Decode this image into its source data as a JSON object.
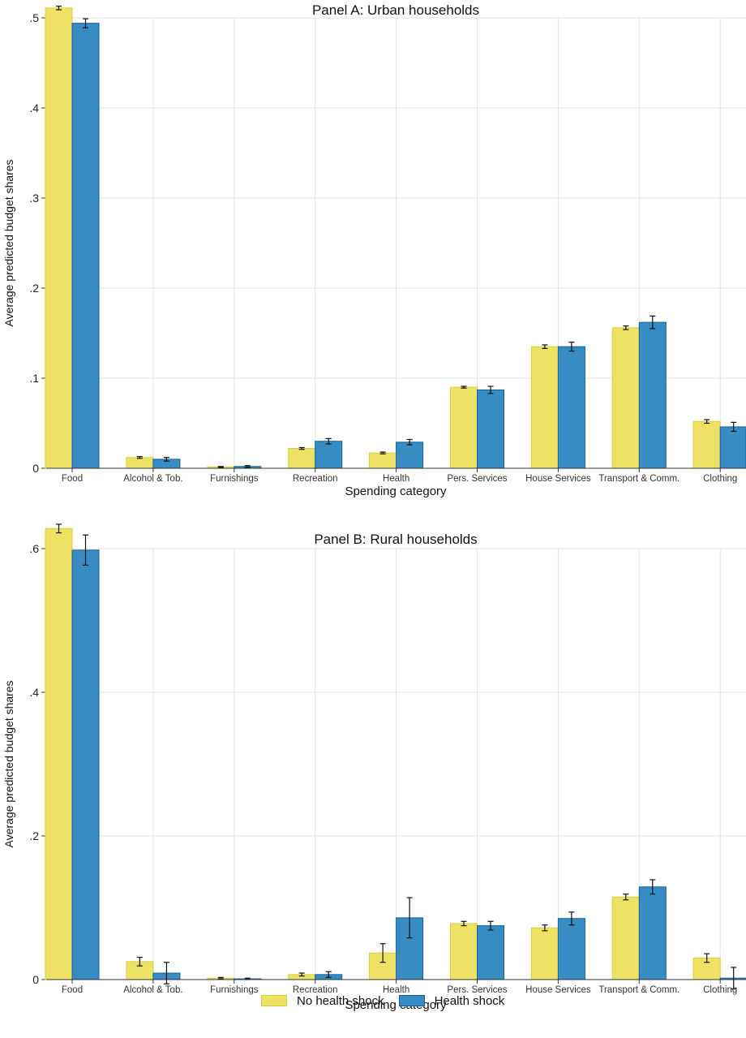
{
  "colors": {
    "no_shock_fill": "#eee264",
    "no_shock_stroke": "#d9cd3c",
    "shock_fill": "#368cc3",
    "shock_stroke": "#1a5f92",
    "grid": "#e3e3e3"
  },
  "legend": {
    "items": [
      {
        "label": "No health shock",
        "color": "#eee264"
      },
      {
        "label": "Health shock",
        "color": "#368cc3"
      }
    ],
    "position": "bottom"
  },
  "chart_data": [
    {
      "type": "bar",
      "title": "Panel A: Urban households",
      "xlabel": "Spending category",
      "ylabel": "Average predicted budget shares",
      "ylim": [
        0,
        0.5
      ],
      "yticks": [
        0,
        0.1,
        0.2,
        0.3,
        0.4,
        0.5
      ],
      "ytick_labels": [
        "0",
        ".1",
        ".2",
        ".3",
        ".4",
        ".5"
      ],
      "grid": true,
      "categories": [
        "Food",
        "Alcohol & Tob.",
        "Furnishings",
        "Recreation",
        "Health",
        "Pers. Services",
        "House Services",
        "Transport & Comm.",
        "Clothing"
      ],
      "series": [
        {
          "name": "No health shock",
          "values": [
            0.511,
            0.012,
            0.0015,
            0.022,
            0.017,
            0.09,
            0.135,
            0.156,
            0.052
          ],
          "ci": [
            [
              0.509,
              0.513
            ],
            [
              0.011,
              0.013
            ],
            [
              0.001,
              0.002
            ],
            [
              0.021,
              0.023
            ],
            [
              0.016,
              0.018
            ],
            [
              0.089,
              0.091
            ],
            [
              0.133,
              0.137
            ],
            [
              0.154,
              0.158
            ],
            [
              0.05,
              0.054
            ]
          ]
        },
        {
          "name": "Health shock",
          "values": [
            0.494,
            0.01,
            0.002,
            0.03,
            0.029,
            0.087,
            0.135,
            0.162,
            0.046
          ],
          "ci": [
            [
              0.489,
              0.499
            ],
            [
              0.008,
              0.012
            ],
            [
              0.001,
              0.003
            ],
            [
              0.027,
              0.033
            ],
            [
              0.026,
              0.032
            ],
            [
              0.083,
              0.091
            ],
            [
              0.13,
              0.14
            ],
            [
              0.155,
              0.169
            ],
            [
              0.041,
              0.051
            ]
          ]
        }
      ]
    },
    {
      "type": "bar",
      "title": "Panel B: Rural households",
      "xlabel": "Spending category",
      "ylabel": "Average predicted budget shares",
      "ylim": [
        0,
        0.6
      ],
      "yticks": [
        0,
        0.2,
        0.4,
        0.6
      ],
      "ytick_labels": [
        "0",
        ".2",
        ".4",
        ".6"
      ],
      "grid": true,
      "categories": [
        "Food",
        "Alcohol & Tob.",
        "Furnishings",
        "Recreation",
        "Health",
        "Pers. Services",
        "House Services",
        "Transport & Comm.",
        "Clothing"
      ],
      "series": [
        {
          "name": "No health shock",
          "values": [
            0.628,
            0.025,
            0.002,
            0.007,
            0.037,
            0.078,
            0.072,
            0.115,
            0.03
          ],
          "ci": [
            [
              0.622,
              0.634
            ],
            [
              0.019,
              0.031
            ],
            [
              0.001,
              0.003
            ],
            [
              0.005,
              0.009
            ],
            [
              0.024,
              0.05
            ],
            [
              0.075,
              0.081
            ],
            [
              0.068,
              0.076
            ],
            [
              0.111,
              0.119
            ],
            [
              0.024,
              0.036
            ]
          ]
        },
        {
          "name": "Health shock",
          "values": [
            0.598,
            0.009,
            0.001,
            0.007,
            0.086,
            0.075,
            0.085,
            0.129,
            0.002
          ],
          "ci": [
            [
              0.577,
              0.619
            ],
            [
              -0.006,
              0.024
            ],
            [
              0.0,
              0.002
            ],
            [
              0.003,
              0.011
            ],
            [
              0.058,
              0.114
            ],
            [
              0.069,
              0.081
            ],
            [
              0.076,
              0.094
            ],
            [
              0.119,
              0.139
            ],
            [
              -0.013,
              0.017
            ]
          ]
        }
      ]
    }
  ]
}
